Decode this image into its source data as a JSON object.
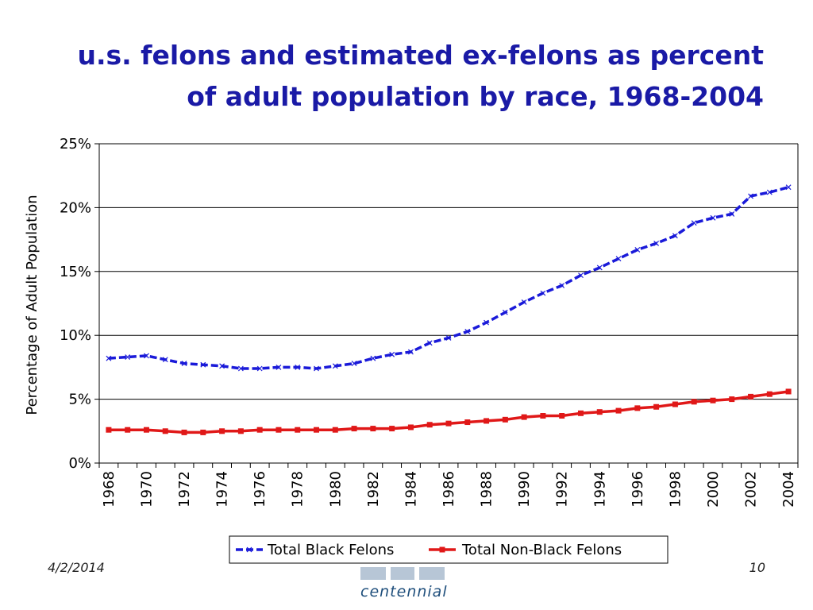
{
  "title_lines": [
    "u.s. felons and estimated ex-felons as percent",
    "of adult population by race, 1968-2004"
  ],
  "footer": {
    "date": "4/2/2014",
    "page": "10",
    "logo_text": "centennial"
  },
  "colors": {
    "title": "#1a1aa6",
    "black_series": "#1a1ad9",
    "nonblack_series": "#e01818",
    "gridline": "#000000",
    "legend_border": "#000000"
  },
  "chart_data": {
    "type": "line",
    "ylabel": "Percentage of Adult Population",
    "ylim": [
      0,
      25
    ],
    "yticks": [
      "0%",
      "5%",
      "10%",
      "15%",
      "20%",
      "25%"
    ],
    "grid": true,
    "legend_position": "bottom",
    "x": [
      1968,
      1969,
      1970,
      1971,
      1972,
      1973,
      1974,
      1975,
      1976,
      1977,
      1978,
      1979,
      1980,
      1981,
      1982,
      1983,
      1984,
      1985,
      1986,
      1987,
      1988,
      1989,
      1990,
      1991,
      1992,
      1993,
      1994,
      1995,
      1996,
      1997,
      1998,
      1999,
      2000,
      2001,
      2002,
      2003,
      2004
    ],
    "xticks": [
      "1968",
      "1970",
      "1972",
      "1974",
      "1976",
      "1978",
      "1980",
      "1982",
      "1984",
      "1986",
      "1988",
      "1990",
      "1992",
      "1994",
      "1996",
      "1998",
      "2000",
      "2002",
      "2004"
    ],
    "series": [
      {
        "name": "Total Black Felons",
        "marker": "x",
        "values": [
          8.2,
          8.3,
          8.4,
          8.1,
          7.8,
          7.7,
          7.6,
          7.4,
          7.4,
          7.5,
          7.5,
          7.4,
          7.6,
          7.8,
          8.2,
          8.5,
          8.7,
          9.4,
          9.8,
          10.3,
          11.0,
          11.8,
          12.6,
          13.3,
          13.9,
          14.7,
          15.3,
          16.0,
          16.7,
          17.2,
          17.8,
          18.8,
          19.2,
          19.5,
          20.9,
          21.2,
          21.6
        ]
      },
      {
        "name": "Total Non-Black Felons",
        "marker": "square",
        "values": [
          2.6,
          2.6,
          2.6,
          2.5,
          2.4,
          2.4,
          2.5,
          2.5,
          2.6,
          2.6,
          2.6,
          2.6,
          2.6,
          2.7,
          2.7,
          2.7,
          2.8,
          3.0,
          3.1,
          3.2,
          3.3,
          3.4,
          3.6,
          3.7,
          3.7,
          3.9,
          4.0,
          4.1,
          4.3,
          4.4,
          4.6,
          4.8,
          4.9,
          5.0,
          5.2,
          5.4,
          5.6
        ]
      }
    ]
  }
}
